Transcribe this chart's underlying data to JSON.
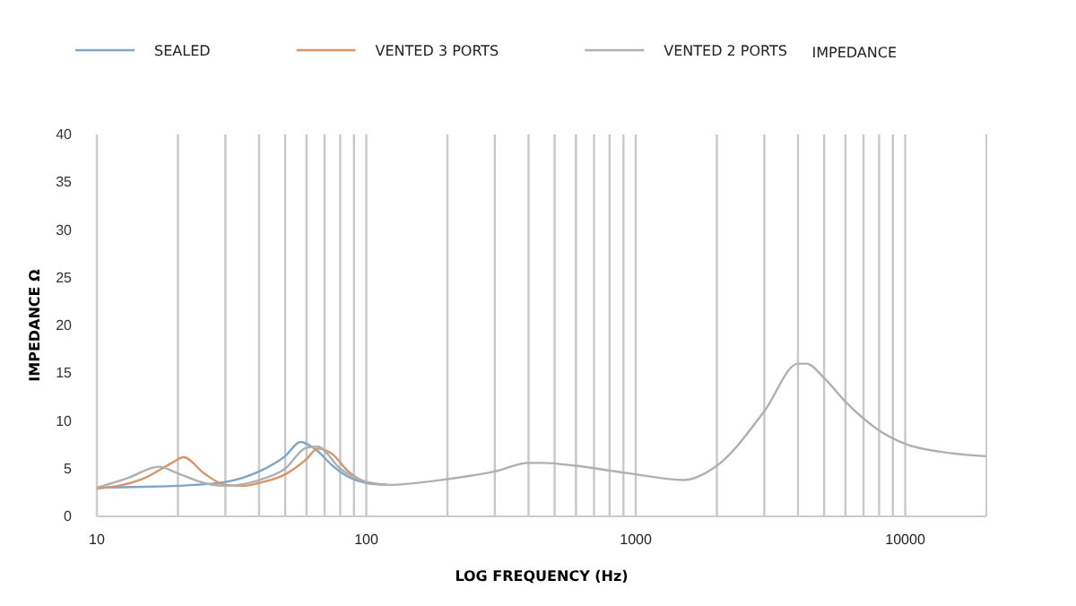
{
  "chart_data": {
    "type": "line",
    "xlabel": "LOG FREQUENCY (Hz)",
    "ylabel": "IMPEDANCE Ω",
    "annotations": [
      "IMPEDANCE"
    ],
    "log": "x",
    "grid": "x",
    "legend": "top left",
    "line_style": "solid",
    "marker": "none",
    "xlim": [
      10,
      20000
    ],
    "ylim": [
      0,
      40
    ],
    "xticks": [
      10,
      {
        "value": 20,
        "label": null
      },
      {
        "value": 30,
        "label": null
      },
      {
        "value": 40,
        "label": null
      },
      {
        "value": 50,
        "label": null
      },
      {
        "value": 60,
        "label": null
      },
      {
        "value": 70,
        "label": null
      },
      {
        "value": 80,
        "label": null
      },
      {
        "value": 90,
        "label": null
      },
      100,
      {
        "value": 200,
        "label": null
      },
      {
        "value": 300,
        "label": null
      },
      {
        "value": 400,
        "label": null
      },
      {
        "value": 500,
        "label": null
      },
      {
        "value": 600,
        "label": null
      },
      {
        "value": 700,
        "label": null
      },
      {
        "value": 800,
        "label": null
      },
      {
        "value": 900,
        "label": null
      },
      1000,
      {
        "value": 2000,
        "label": null
      },
      {
        "value": 3000,
        "label": null
      },
      {
        "value": 4000,
        "label": null
      },
      {
        "value": 5000,
        "label": null
      },
      {
        "value": 6000,
        "label": null
      },
      {
        "value": 7000,
        "label": null
      },
      {
        "value": 8000,
        "label": null
      },
      {
        "value": 9000,
        "label": null
      },
      10000
    ],
    "yticks": [
      0,
      5,
      10,
      15,
      20,
      25,
      30,
      35,
      40
    ],
    "series": [
      {
        "name": "SEALED",
        "color": "#7fa6c6",
        "x": [
          10,
          15,
          20,
          30,
          40,
          50,
          57,
          65,
          75,
          85,
          100,
          120
        ],
        "values": [
          3,
          3.1,
          3.2,
          3.6,
          4.7,
          6.3,
          7.8,
          7,
          5.3,
          4.2,
          3.5,
          3.3
        ]
      },
      {
        "name": "VENTED 3 PORTS",
        "color": "#d9956a",
        "x": [
          10,
          15,
          19,
          21,
          25,
          30,
          35,
          40,
          50,
          60,
          66,
          75,
          85,
          100,
          120
        ],
        "values": [
          2.9,
          4,
          5.6,
          6.2,
          4.5,
          3.3,
          3.2,
          3.5,
          4.4,
          6,
          7.1,
          6.5,
          4.8,
          3.6,
          3.3
        ]
      },
      {
        "name": "VENTED 2 PORTS",
        "color": "#b0b0b0",
        "x": [
          10,
          13,
          17,
          20,
          25,
          30,
          40,
          50,
          60,
          66,
          80,
          100,
          120,
          200,
          300,
          400,
          450,
          600,
          800,
          1000,
          1500,
          2000,
          3000,
          4000,
          4300,
          5000,
          6000,
          8000,
          10000,
          15000,
          20000
        ],
        "values": [
          3,
          4,
          5.2,
          4.5,
          3.5,
          3.2,
          3.8,
          5,
          7.2,
          7.3,
          5,
          3.6,
          3.3,
          3.9,
          4.7,
          5.6,
          5.6,
          5.3,
          4.8,
          4.4,
          3.8,
          5.3,
          11,
          16,
          16,
          14.5,
          12,
          9,
          7.6,
          6.6,
          6.3
        ]
      }
    ]
  }
}
